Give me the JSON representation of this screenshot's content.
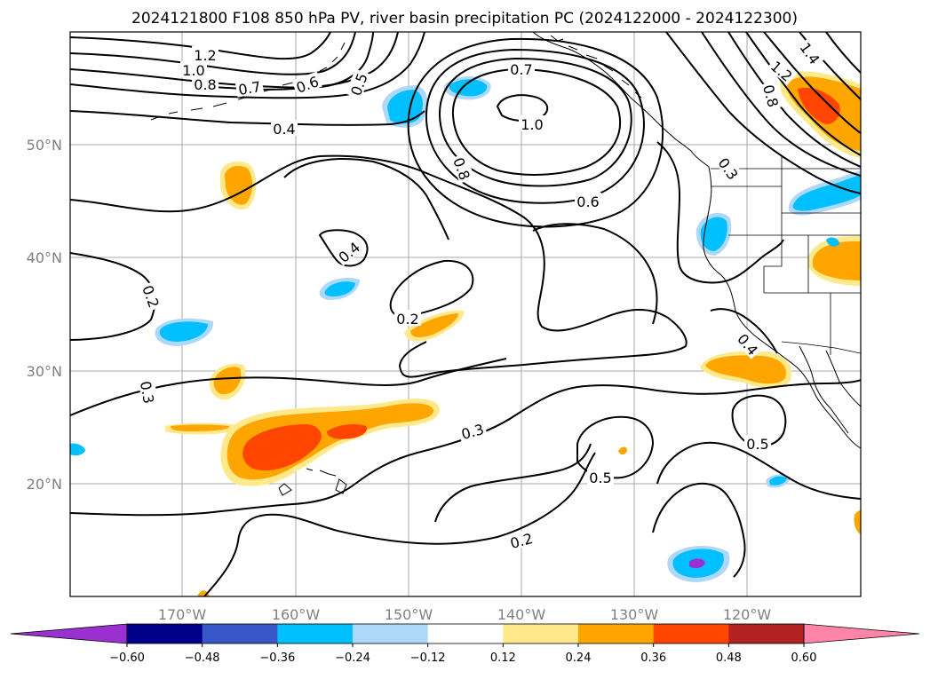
{
  "chart_data": {
    "type": "contour map",
    "title": "2024121800 F108 850 hPa PV, river basin precipitation PC (2024122000 - 2024122300)",
    "x_axis": {
      "ticks": [
        "170°W",
        "160°W",
        "150°W",
        "140°W",
        "130°W",
        "120°W"
      ],
      "range": [
        -180,
        -110
      ]
    },
    "y_axis": {
      "ticks": [
        "20°N",
        "30°N",
        "40°N",
        "50°N"
      ],
      "range": [
        10,
        60
      ]
    },
    "grid": true,
    "contour_labels": [
      "1.2",
      "1.0",
      "0.8",
      "0.7",
      "0.6",
      "0.5",
      "0.4",
      "0.7",
      "1.0",
      "0.8",
      "0.6",
      "0.4",
      "0.2",
      "0.2",
      "0.3",
      "0.3",
      "0.5",
      "0.5",
      "0.2",
      "0.4",
      "1.4",
      "1.2",
      "0.8",
      "0.3"
    ],
    "colorbar": {
      "ticks": [
        "−0.60",
        "−0.48",
        "−0.36",
        "−0.24",
        "−0.12",
        "0.12",
        "0.24",
        "0.36",
        "0.48",
        "0.60"
      ],
      "levels": [
        -0.6,
        -0.48,
        -0.36,
        -0.24,
        -0.12,
        0.12,
        0.24,
        0.36,
        0.48,
        0.6
      ],
      "colors": [
        "#9b30d0",
        "#00008b",
        "#3858c8",
        "#00bfff",
        "#add8f8",
        "#ffffff",
        "#ffe98a",
        "#ffa500",
        "#ff4500",
        "#b22222",
        "#ff85a8"
      ],
      "extend": "both"
    }
  }
}
